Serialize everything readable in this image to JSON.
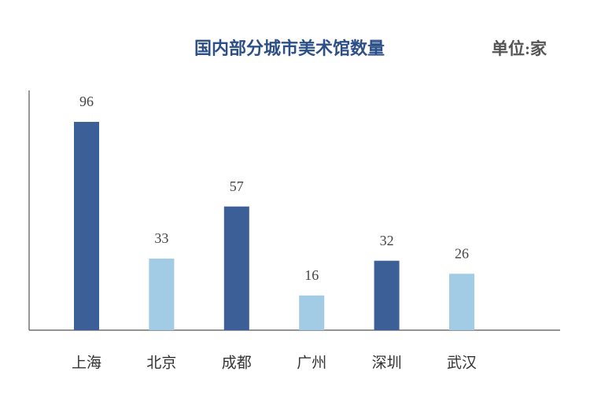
{
  "chart_data": {
    "type": "bar",
    "title": "国内部分城市美术馆数量",
    "unit": "单位:家",
    "categories": [
      "上海",
      "北京",
      "成都",
      "广州",
      "深圳",
      "武汉"
    ],
    "values": [
      96,
      33,
      57,
      16,
      32,
      26
    ],
    "colors": [
      "#3b5f96",
      "#a2cbe6",
      "#3b5f96",
      "#a2cbe6",
      "#3b5f96",
      "#a2cbe6"
    ]
  }
}
